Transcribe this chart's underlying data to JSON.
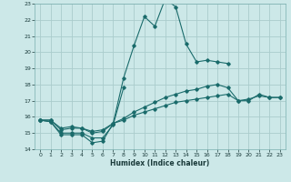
{
  "xlabel": "Humidex (Indice chaleur)",
  "ylabel": "",
  "bg_color": "#cce8e8",
  "grid_color": "#aacccc",
  "line_color": "#1a6b6b",
  "xlim": [
    -0.5,
    23.5
  ],
  "ylim": [
    14,
    23
  ],
  "yticks": [
    14,
    15,
    16,
    17,
    18,
    19,
    20,
    21,
    22,
    23
  ],
  "xticks": [
    0,
    1,
    2,
    3,
    4,
    5,
    6,
    7,
    8,
    9,
    10,
    11,
    12,
    13,
    14,
    15,
    16,
    17,
    18,
    19,
    20,
    21,
    22,
    23
  ],
  "tick_fontsize": 4.5,
  "xlabel_fontsize": 5.5,
  "series": [
    {
      "x": [
        0,
        1,
        2,
        3,
        4,
        5,
        6,
        7,
        8,
        9,
        10,
        11,
        12,
        13,
        14,
        15,
        16,
        17,
        18
      ],
      "y": [
        15.8,
        15.7,
        14.9,
        14.9,
        14.9,
        14.4,
        14.5,
        15.6,
        18.4,
        20.4,
        22.2,
        21.6,
        23.3,
        22.8,
        20.5,
        19.4,
        19.5,
        19.4,
        19.3
      ]
    },
    {
      "x": [
        0,
        1,
        2,
        3,
        4,
        5,
        6,
        7,
        8
      ],
      "y": [
        15.8,
        15.7,
        15.0,
        15.0,
        15.0,
        14.7,
        14.7,
        15.5,
        17.8
      ]
    },
    {
      "x": [
        0,
        1,
        2,
        3,
        4,
        5,
        6,
        7,
        8,
        9,
        10,
        11,
        12,
        13,
        14,
        15,
        16,
        17,
        18,
        19,
        20,
        21,
        22,
        23
      ],
      "y": [
        15.8,
        15.8,
        15.2,
        15.3,
        15.3,
        15.0,
        15.1,
        15.6,
        15.9,
        16.3,
        16.6,
        16.9,
        17.2,
        17.4,
        17.6,
        17.7,
        17.9,
        18.0,
        17.8,
        17.0,
        17.0,
        17.4,
        17.2,
        17.2
      ]
    },
    {
      "x": [
        0,
        1,
        2,
        3,
        4,
        5,
        6,
        7,
        8,
        9,
        10,
        11,
        12,
        13,
        14,
        15,
        16,
        17,
        18,
        19,
        20,
        21,
        22,
        23
      ],
      "y": [
        15.8,
        15.8,
        15.3,
        15.4,
        15.3,
        15.1,
        15.2,
        15.6,
        15.8,
        16.1,
        16.3,
        16.5,
        16.7,
        16.9,
        17.0,
        17.1,
        17.2,
        17.3,
        17.4,
        17.0,
        17.1,
        17.3,
        17.2,
        17.2
      ]
    }
  ]
}
